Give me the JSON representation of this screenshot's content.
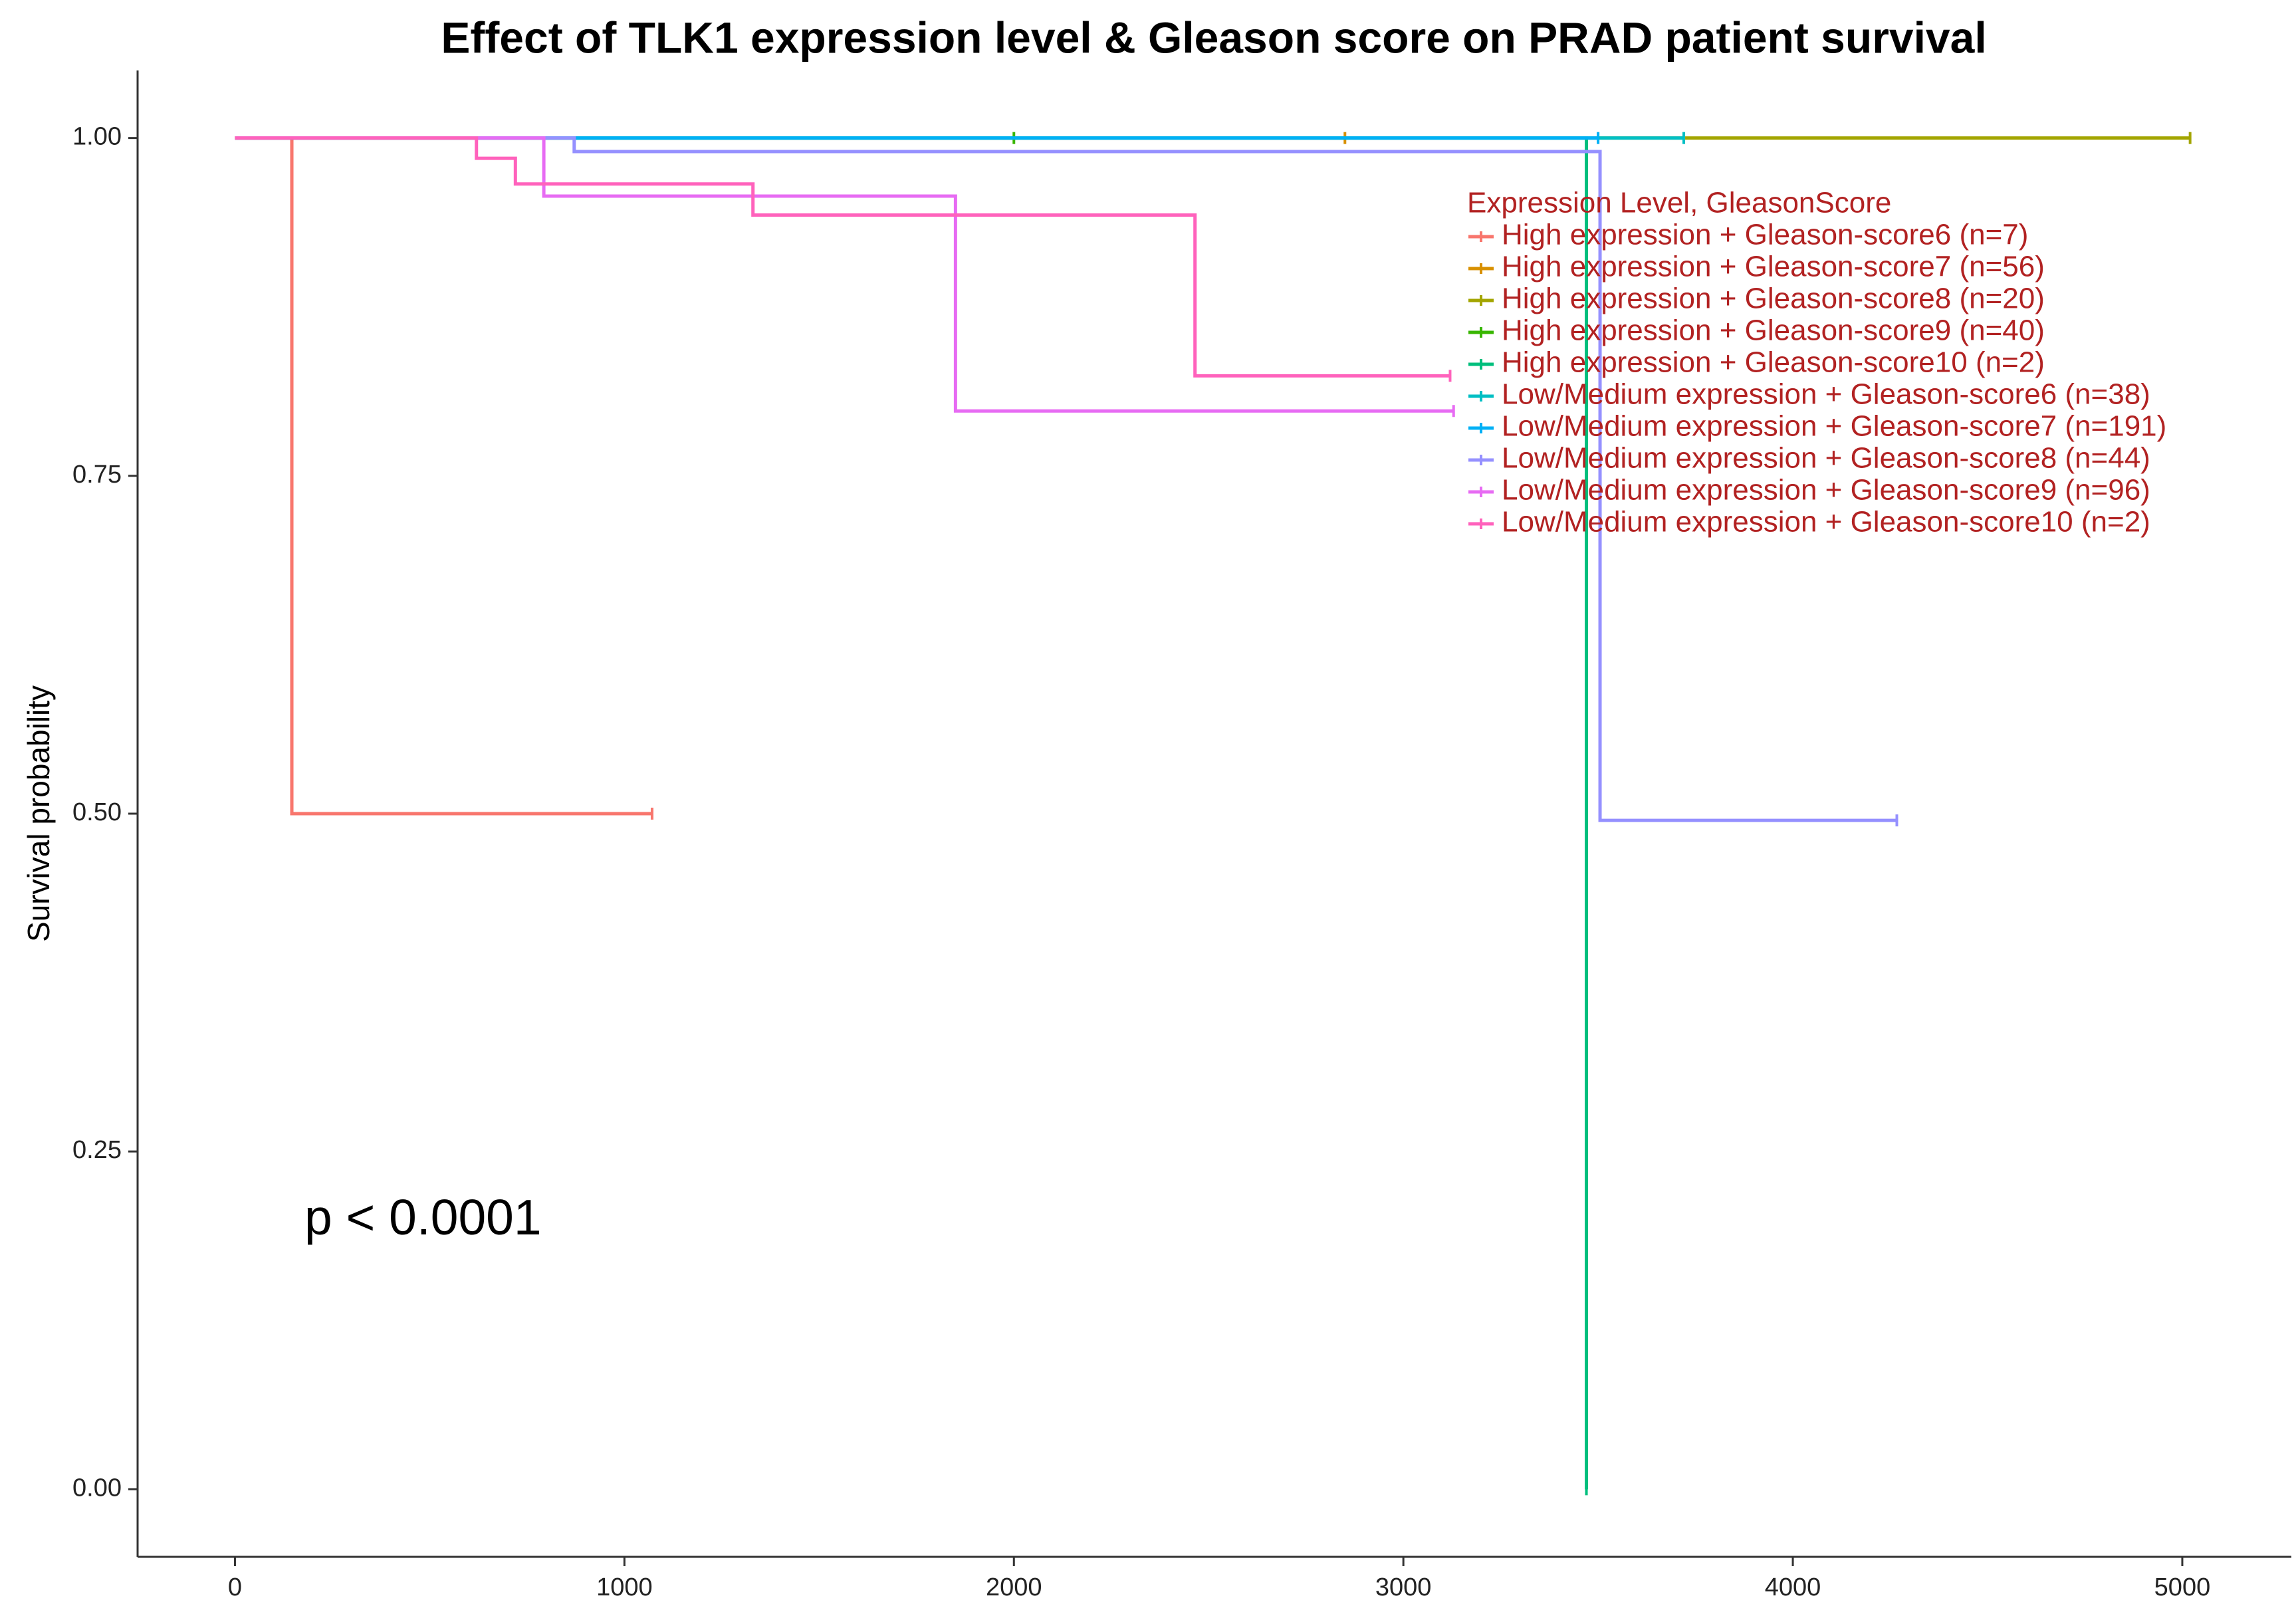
{
  "chart_data": {
    "type": "step",
    "title": "Effect of TLK1 expression level & Gleason score on PRAD patient survival",
    "ylabel": "Survival probability",
    "annotation": "p < 0.0001",
    "legend_title": "Expression Level, GleasonScore",
    "xlim": [
      -250,
      5280
    ],
    "ylim": [
      -0.05,
      1.05
    ],
    "xticks": [
      0,
      1000,
      2000,
      3000,
      4000,
      5000
    ],
    "yticks": [
      {
        "value": 0,
        "label": "0.00"
      },
      0.25,
      {
        "value": 0.5,
        "label": "0.50"
      },
      0.75,
      {
        "value": 1,
        "label": "1.00"
      }
    ],
    "series": [
      {
        "name": "High expression + Gleason-score6 (n=7)",
        "color": "#F8766D",
        "x": [
          0,
          146,
          1071
        ],
        "values": [
          1,
          0.5,
          0.5
        ]
      },
      {
        "name": "High expression + Gleason-score7 (n=56)",
        "color": "#D89000",
        "x": [
          0,
          2850
        ],
        "values": [
          1,
          1
        ]
      },
      {
        "name": "High expression + Gleason-score8 (n=20)",
        "color": "#A3A500",
        "x": [
          0,
          5020
        ],
        "values": [
          1,
          1
        ]
      },
      {
        "name": "High expression + Gleason-score9 (n=40)",
        "color": "#39B600",
        "x": [
          0,
          2000
        ],
        "values": [
          1,
          1
        ]
      },
      {
        "name": "High expression + Gleason-score10 (n=2)",
        "color": "#00BF7D",
        "x": [
          0,
          3470
        ],
        "values": [
          1,
          0
        ]
      },
      {
        "name": "Low/Medium expression + Gleason-score6 (n=38)",
        "color": "#00BFC4",
        "x": [
          0,
          3720
        ],
        "values": [
          1,
          1
        ]
      },
      {
        "name": "Low/Medium expression + Gleason-score7 (n=191)",
        "color": "#00B0F6",
        "x": [
          0,
          3500
        ],
        "values": [
          1,
          1
        ]
      },
      {
        "name": "Low/Medium expression + Gleason-score8 (n=44)",
        "color": "#9590FF",
        "x": [
          0,
          871,
          3505,
          4267
        ],
        "values": [
          1,
          0.99,
          0.495,
          0.495
        ]
      },
      {
        "name": "Low/Medium expression + Gleason-score9 (n=96)",
        "color": "#E76BF3",
        "x": [
          0,
          793,
          1850,
          3129
        ],
        "values": [
          1,
          0.957,
          0.798,
          0.798
        ]
      },
      {
        "name": "Low/Medium expression + Gleason-score10 (n=2)",
        "color": "#FF62BC",
        "x": [
          0,
          620,
          720,
          1330,
          2465,
          3120
        ],
        "values": [
          1,
          0.985,
          0.966,
          0.943,
          0.824,
          0.824
        ]
      }
    ]
  }
}
